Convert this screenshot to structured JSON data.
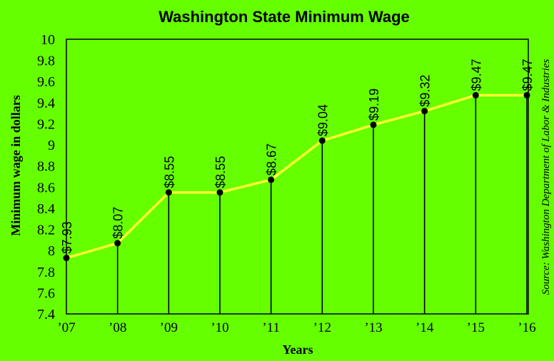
{
  "chart_data": {
    "type": "line",
    "title": "Washington State Minimum Wage",
    "xlabel": "Years",
    "ylabel": "Minimum wage in dollars",
    "source": "Source: Washington Department of Labor & Industries",
    "categories": [
      "’07",
      "’08",
      "’09",
      "’10",
      "’11",
      "’12",
      "’13",
      "’14",
      "’15",
      "’16"
    ],
    "values": [
      7.93,
      8.07,
      8.55,
      8.55,
      8.67,
      9.04,
      9.19,
      9.32,
      9.47,
      9.47
    ],
    "data_labels": [
      "$7.93",
      "$8.07",
      "$8.55",
      "$8.55",
      "$8.67",
      "$9.04",
      "$9.19",
      "$9.32",
      "$9.47",
      "$9.47"
    ],
    "yticks": [
      "7.4",
      "7.6",
      "7.8",
      "8",
      "8.2",
      "8.4",
      "8.6",
      "8.8",
      "9",
      "9.2",
      "9.4",
      "9.6",
      "9.8",
      "10"
    ],
    "ylim": [
      7.4,
      10
    ],
    "grid": false,
    "colors": {
      "background": "#66ff00",
      "line": "#ffff33",
      "marker": "#000000",
      "drop_line": "#000000"
    }
  }
}
